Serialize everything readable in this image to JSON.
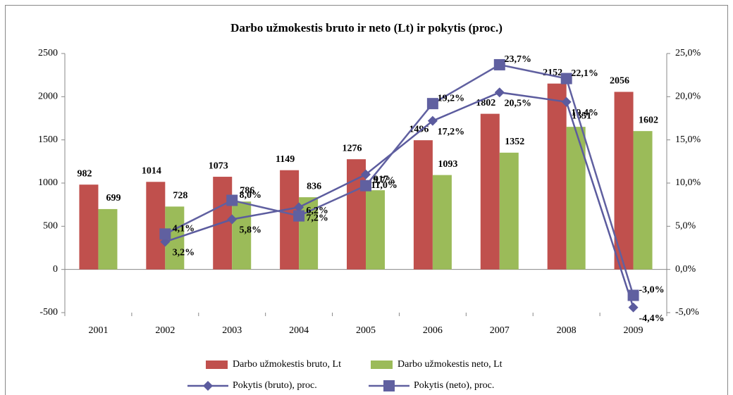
{
  "chart_data": {
    "type": "bar",
    "title": "Darbo užmokestis bruto ir neto (Lt) ir pokytis (proc.)",
    "categories": [
      "2001",
      "2002",
      "2003",
      "2004",
      "2005",
      "2006",
      "2007",
      "2008",
      "2009"
    ],
    "series": [
      {
        "name": "Darbo užmokestis bruto, Lt",
        "type": "bar",
        "color": "#c0504d",
        "values": [
          982,
          1014,
          1073,
          1149,
          1276,
          1496,
          1802,
          2152,
          2056
        ]
      },
      {
        "name": "Darbo užmokestis neto, Lt",
        "type": "bar",
        "color": "#9bbb59",
        "values": [
          699,
          728,
          786,
          836,
          917,
          1093,
          1352,
          1651,
          1602
        ]
      },
      {
        "name": "Pokytis (bruto), proc.",
        "type": "line",
        "axis": "y2",
        "color": "#5b5b9e",
        "marker": "diamond",
        "values": [
          null,
          3.2,
          5.8,
          7.2,
          11.0,
          17.2,
          20.5,
          19.4,
          -4.4
        ],
        "value_labels": [
          null,
          "3,2%",
          "5,8%",
          "7,2%",
          "11,0%",
          "17,2%",
          "20,5%",
          "19,4%",
          "-4,4%"
        ]
      },
      {
        "name": "Pokytis (neto), proc.",
        "type": "line",
        "axis": "y2",
        "color": "#6060a0",
        "marker": "square",
        "values": [
          null,
          4.1,
          8.0,
          6.2,
          9.7,
          19.2,
          23.7,
          22.1,
          -3.0
        ],
        "value_labels": [
          null,
          "4,1%",
          "8,0%",
          "6,2%",
          "9,7%",
          "19,2%",
          "23,7%",
          "22,1%",
          "-3,0%"
        ]
      }
    ],
    "ylim": [
      -500,
      2500
    ],
    "yticks": [
      -500,
      0,
      500,
      1000,
      1500,
      2000,
      2500
    ],
    "y2lim": [
      -5,
      25
    ],
    "y2ticks": [
      {
        "value": -5,
        "label": "-5,0%"
      },
      {
        "value": 0,
        "label": "0,0%"
      },
      {
        "value": 5,
        "label": "5,0%"
      },
      {
        "value": 10,
        "label": "10,0%"
      },
      {
        "value": 15,
        "label": "15,0%"
      },
      {
        "value": 20,
        "label": "20,0%"
      },
      {
        "value": 25,
        "label": "25,0%"
      }
    ],
    "legend": "bottom"
  }
}
